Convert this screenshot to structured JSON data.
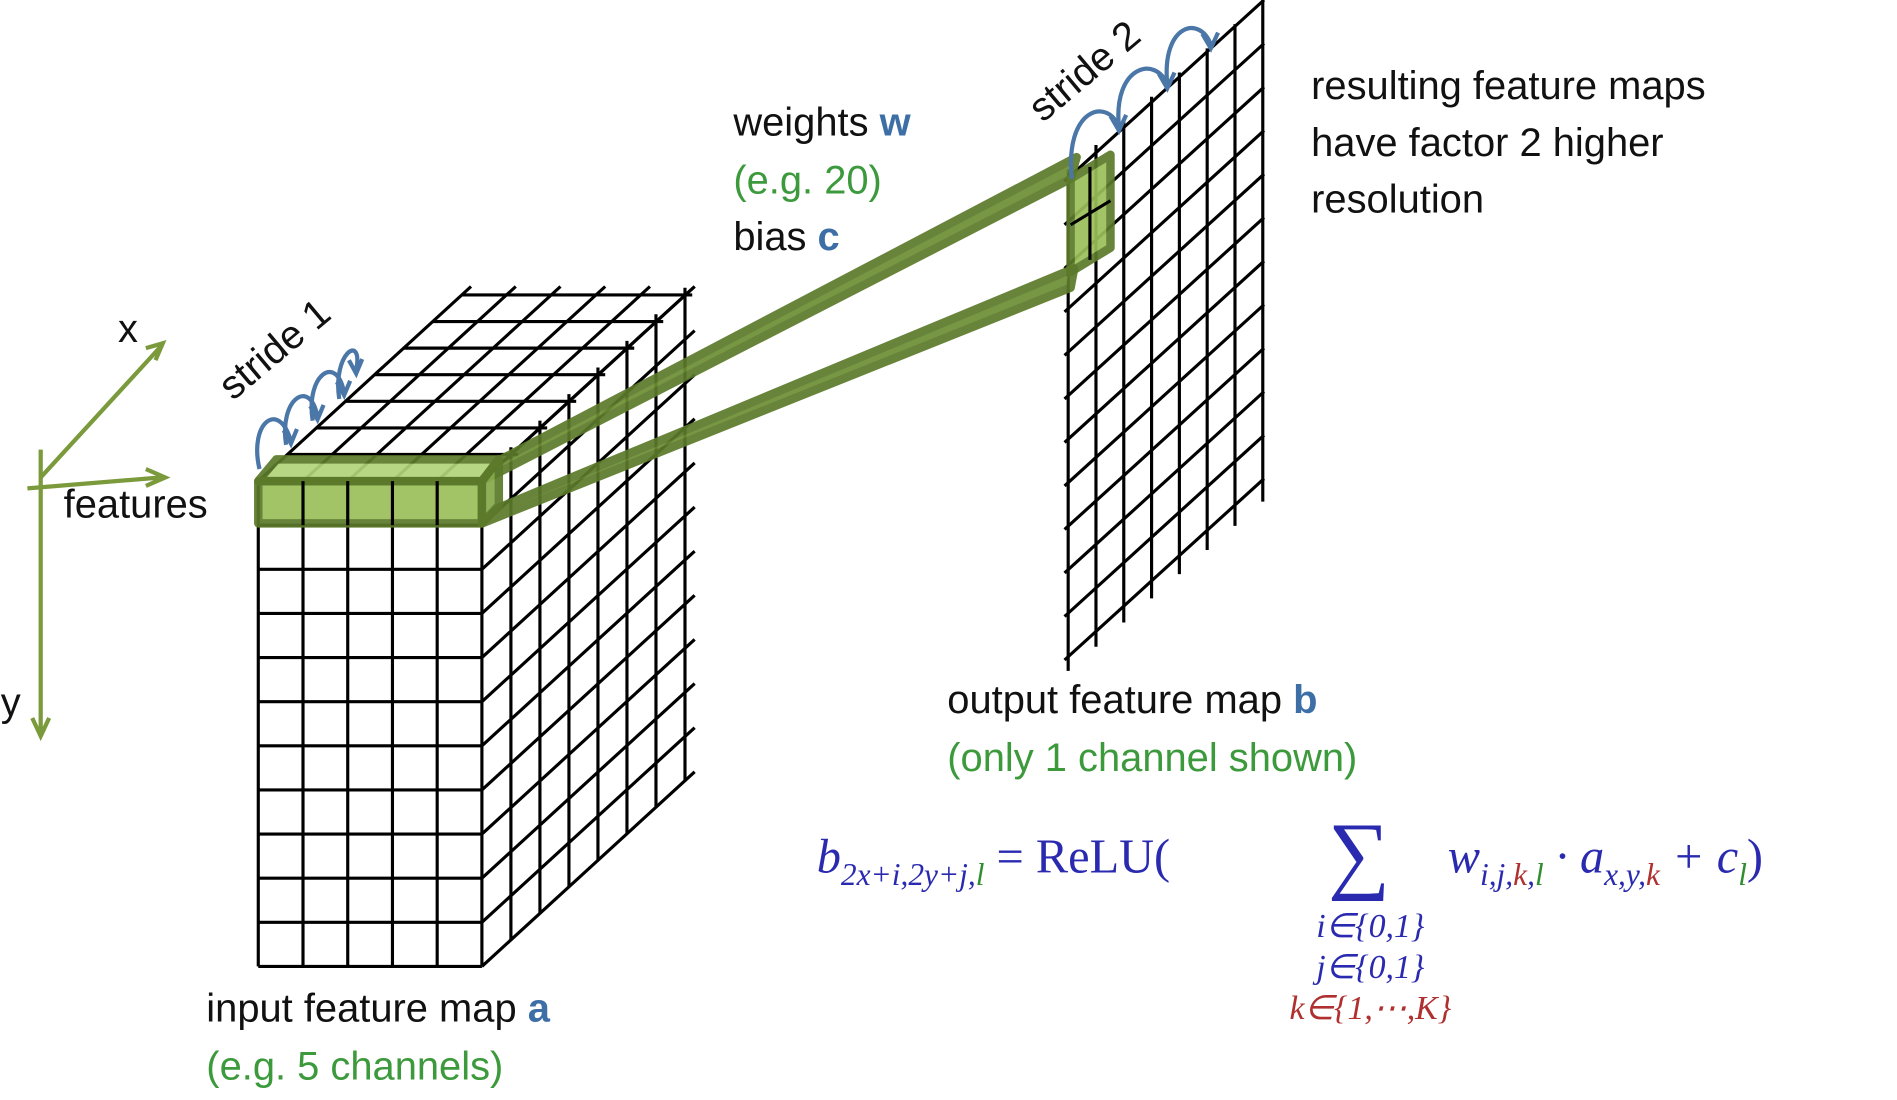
{
  "axes": {
    "x": "x",
    "y": "y",
    "features": "features"
  },
  "stride1": "stride 1",
  "stride2": "stride 2",
  "weights": {
    "text": "weights ",
    "symbol": "w",
    "note": "(e.g. 20)"
  },
  "bias": {
    "text": "bias ",
    "symbol": "c"
  },
  "result": [
    "resulting feature maps",
    "have factor 2 higher",
    "resolution"
  ],
  "output": {
    "text": "output feature map ",
    "symbol": "b",
    "note": "(only 1 channel shown)"
  },
  "input": {
    "text": "input feature map ",
    "symbol": "a",
    "note": "(e.g. 5 channels)"
  },
  "formula": [
    "b",
    "2x+i,2y+j,",
    "l",
    " = ReLU(",
    "∑",
    "w",
    "i,j,",
    "k",
    ",",
    "l",
    " · a",
    "x,y,",
    "k",
    " + c",
    "l",
    ")"
  ],
  "limits": [
    "i∈{0,1}",
    "j∈{0,1}",
    "k∈{1,⋯,K}"
  ]
}
